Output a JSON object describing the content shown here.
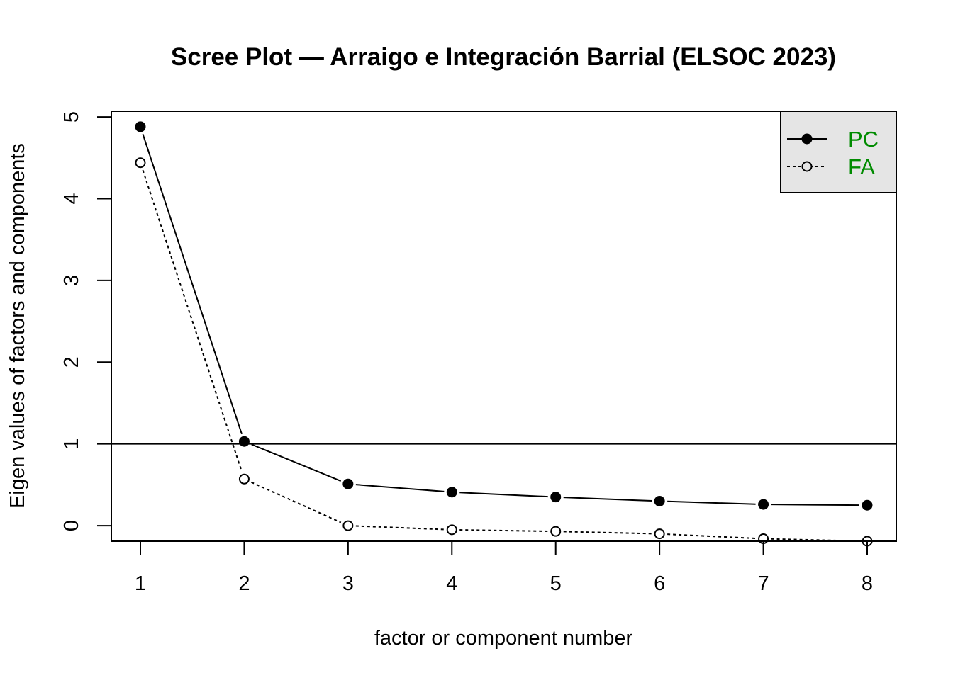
{
  "chart_data": {
    "type": "line",
    "title": "Scree Plot — Arraigo e Integración Barrial (ELSOC 2023)",
    "xlabel": "factor or component number",
    "ylabel": "Eigen values of factors and components",
    "x": [
      1,
      2,
      3,
      4,
      5,
      6,
      7,
      8
    ],
    "xlim": [
      0.72,
      8.28
    ],
    "ylim": [
      -0.19,
      5.07
    ],
    "xticks": [
      1,
      2,
      3,
      4,
      5,
      6,
      7,
      8
    ],
    "yticks": [
      0,
      1,
      2,
      3,
      4,
      5
    ],
    "reference_line": 1,
    "grid": false,
    "series": [
      {
        "name": "PC",
        "values": [
          4.88,
          1.03,
          0.51,
          0.41,
          0.35,
          0.3,
          0.26,
          0.25
        ],
        "line_style": "solid",
        "marker": "filled-circle"
      },
      {
        "name": "FA",
        "values": [
          4.44,
          0.57,
          0.0,
          -0.05,
          -0.07,
          -0.1,
          -0.16,
          -0.19
        ],
        "line_style": "dotted",
        "marker": "open-circle"
      }
    ],
    "legend": {
      "position": "top-right",
      "background": "#e5e5e5",
      "text_color": "#008b00"
    }
  }
}
